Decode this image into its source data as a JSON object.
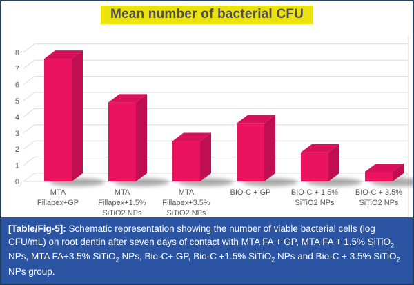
{
  "figure": {
    "title": "Mean number of bacterial CFU",
    "title_bg": "#ece30e",
    "title_color": "#4f4f51",
    "border_color": "#24415c"
  },
  "chart_data": {
    "type": "bar",
    "style": "3d-column",
    "title": "Mean number of bacterial CFU",
    "categories": [
      [
        "MTA",
        "Fillapex+GP"
      ],
      [
        "MTA",
        "Fillapex+1.5%",
        "SiTiO2 NPs"
      ],
      [
        "MTA",
        "Fillapex+3.5%",
        "SiTiO2 NPs"
      ],
      [
        "BIO-C + GP"
      ],
      [
        "BIO-C + 1.5%",
        "SiTiO2 NPs"
      ],
      [
        "BIO-C + 3.5%",
        "SiTiO2 NPs"
      ]
    ],
    "values": [
      7.6,
      4.9,
      2.5,
      3.6,
      1.8,
      0.6
    ],
    "ylim": [
      0,
      8
    ],
    "ytick_step": 1,
    "yticks": [
      0,
      1,
      2,
      3,
      4,
      5,
      6,
      7,
      8
    ],
    "grid": true,
    "legend": false,
    "xlabel": "",
    "ylabel": "",
    "bar_color_front": "#eb1260",
    "bar_color_top": "#d8115a",
    "bar_color_side": "#c00f50",
    "grid_color": "#dcdcdc",
    "tick_color": "#595959",
    "label_color": "#595959"
  },
  "caption": {
    "bg": "#2b55a3",
    "segments": [
      {
        "text": "[Table/Fig-5]:",
        "bold": true
      },
      {
        "text": " Schematic representation showing the number of viable bacterial cells (log CFU/mL) on root dentin after seven days of contact with MTA FA + GP, MTA FA + 1.5% SiTiO"
      },
      {
        "text": "2",
        "sub": true
      },
      {
        "text": " NPs, MTA FA+3.5% SiTiO"
      },
      {
        "text": "2",
        "sub": true
      },
      {
        "text": " NPs, Bio-C+ GP, Bio-C +1.5% SiTiO"
      },
      {
        "text": "2",
        "sub": true
      },
      {
        "text": " NPs and Bio-C + 3.5% SiTiO"
      },
      {
        "text": "2",
        "sub": true
      },
      {
        "text": " NPs group."
      }
    ]
  }
}
